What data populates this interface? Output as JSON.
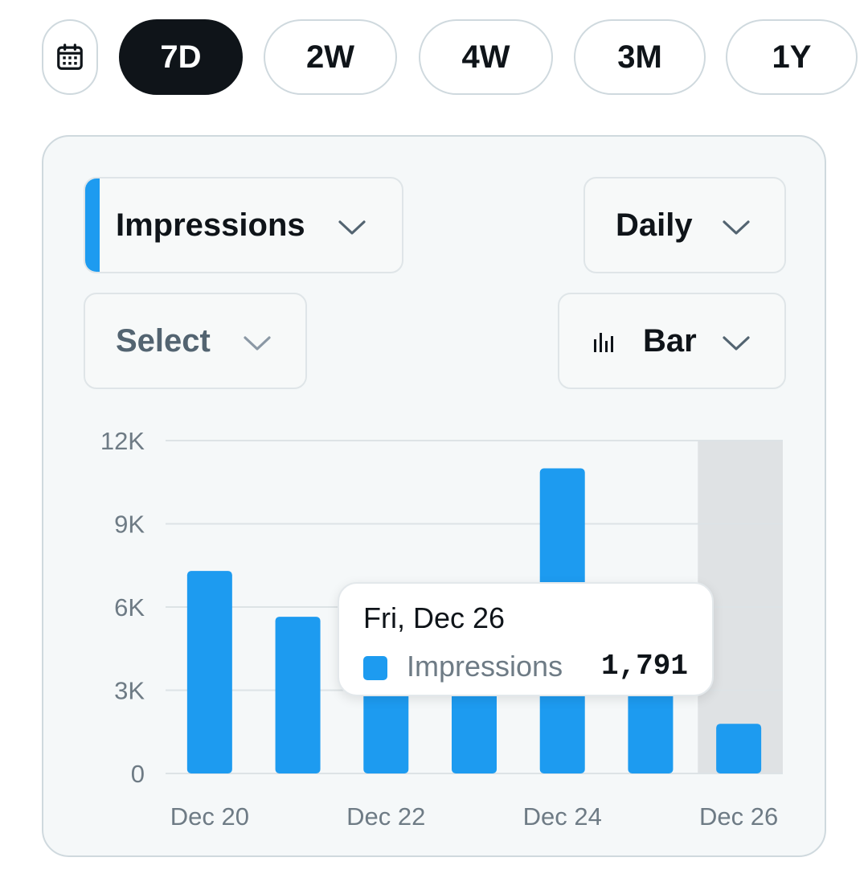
{
  "range": {
    "calendar_icon": "calendar-icon",
    "options": [
      "7D",
      "2W",
      "4W",
      "3M",
      "1Y"
    ],
    "selected": "7D"
  },
  "controls": {
    "metric": {
      "label": "Impressions",
      "accent_color": "#1d9bf0"
    },
    "interval": {
      "label": "Daily"
    },
    "compare": {
      "label": "Select"
    },
    "chart_type": {
      "label": "Bar",
      "icon": "bar-chart-icon"
    }
  },
  "tooltip": {
    "date": "Fri, Dec 26",
    "series": "Impressions",
    "value": "1,791"
  },
  "colors": {
    "bar": "#1d9bf0",
    "highlight": "#dfe2e4",
    "dark": "#0f1419"
  },
  "chart_data": {
    "type": "bar",
    "categories": [
      "Dec 20",
      "Dec 21",
      "Dec 22",
      "Dec 23",
      "Dec 24",
      "Dec 25",
      "Dec 26"
    ],
    "series": [
      {
        "name": "Impressions",
        "values": [
          7300,
          5650,
          3400,
          3500,
          11000,
          3600,
          1791
        ]
      }
    ],
    "x_tick_labels": [
      "Dec 20",
      "Dec 22",
      "Dec 24",
      "Dec 26"
    ],
    "y_ticks": [
      0,
      3000,
      6000,
      9000,
      12000
    ],
    "y_tick_labels": [
      "0",
      "3K",
      "6K",
      "9K",
      "12K"
    ],
    "ylim": [
      0,
      12000
    ],
    "highlighted_category": "Dec 26",
    "grid": true
  }
}
